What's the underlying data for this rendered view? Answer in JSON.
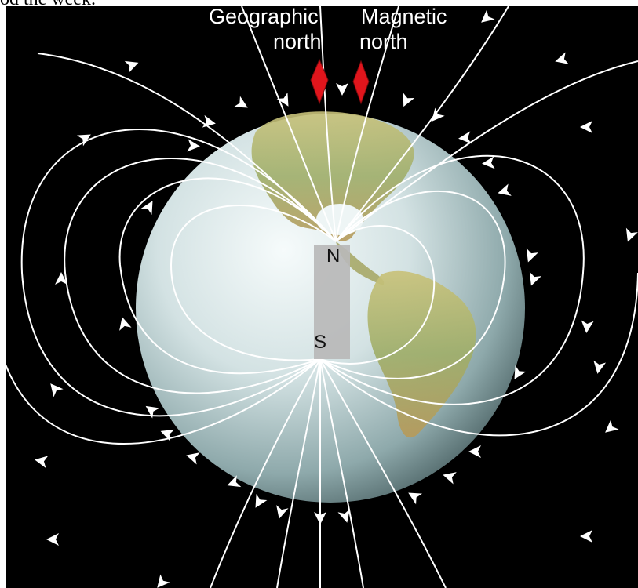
{
  "caption_fragment": "od the week.",
  "labels": {
    "geographic": [
      "Geographic",
      "north"
    ],
    "magnetic": [
      "Magnetic",
      "north"
    ]
  },
  "magnet": {
    "north_pole": "N",
    "south_pole": "S"
  },
  "colors": {
    "background": "#000000",
    "field_line": "#ffffff",
    "pointer": "#e0151c",
    "magnet": "#b9b9b9"
  },
  "icons": [
    "arrowhead-icon",
    "pointer-diamond-icon"
  ]
}
